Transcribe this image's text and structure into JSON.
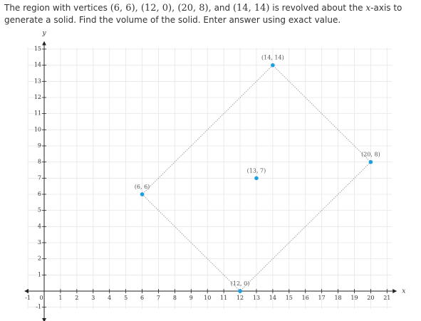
{
  "question": {
    "segments": [
      "The region with vertices ",
      "(6, 6), (12, 0), (20, 8),",
      " and ",
      "(14, 14)",
      " is revolved about the ",
      "x",
      "-axis to generate a solid. Find the volume of the solid. Enter answer using exact value."
    ]
  },
  "chart_data": {
    "type": "scatter",
    "x_label": "x",
    "y_label": "y",
    "xlim": [
      -1,
      21.3
    ],
    "ylim": [
      -1.1,
      15.1
    ],
    "xticks": [
      -1,
      0,
      1,
      2,
      3,
      4,
      5,
      6,
      7,
      8,
      9,
      10,
      11,
      12,
      13,
      14,
      15,
      16,
      17,
      18,
      19,
      20,
      21
    ],
    "yticks": [
      -1,
      1,
      2,
      3,
      4,
      5,
      6,
      7,
      8,
      9,
      10,
      11,
      12,
      13,
      14,
      15
    ],
    "grid": true,
    "series": [
      {
        "x": [
          6,
          12,
          20,
          14
        ],
        "values": [
          6,
          0,
          8,
          14
        ],
        "value_labels": [
          "(6, 6)",
          "(12, 0)",
          "(20, 8)",
          "(14, 14)"
        ],
        "color": "#1a9fe0",
        "closed": true
      },
      {
        "x": [
          13
        ],
        "values": [
          7
        ],
        "value_labels": [
          "(13, 7)"
        ],
        "color": "#1a9fe0",
        "closed": false
      }
    ]
  }
}
